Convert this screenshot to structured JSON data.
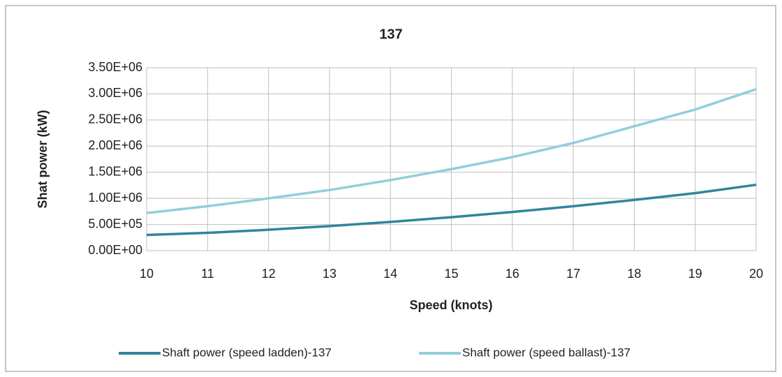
{
  "chart_data": {
    "type": "line",
    "title": "137",
    "xlabel": "Speed (knots)",
    "ylabel": "Shat power (kW)",
    "x": [
      10,
      11,
      12,
      13,
      14,
      15,
      16,
      17,
      18,
      19,
      20
    ],
    "series": [
      {
        "name": "Shaft power (speed ladden)-137",
        "color": "#31859c",
        "values": [
          300000,
          340000,
          400000,
          470000,
          550000,
          640000,
          740000,
          850000,
          970000,
          1100000,
          1260000
        ]
      },
      {
        "name": "Shaft power (speed ballast)-137",
        "color": "#93cddd",
        "values": [
          720000,
          850000,
          1000000,
          1160000,
          1350000,
          1560000,
          1790000,
          2060000,
          2380000,
          2700000,
          3090000
        ]
      }
    ],
    "xlim": [
      10,
      20
    ],
    "xticks": [
      10,
      11,
      12,
      13,
      14,
      15,
      16,
      17,
      18,
      19,
      20
    ],
    "ylim": [
      0,
      3500000
    ],
    "yticks": [
      {
        "value": 0,
        "label": "0.00E+00"
      },
      {
        "value": 500000,
        "label": "5.00E+05"
      },
      {
        "value": 1000000,
        "label": "1.00E+06"
      },
      {
        "value": 1500000,
        "label": "1.50E+06"
      },
      {
        "value": 2000000,
        "label": "2.00E+06"
      },
      {
        "value": 2500000,
        "label": "2.50E+06"
      },
      {
        "value": 3000000,
        "label": "3.00E+06"
      },
      {
        "value": 3500000,
        "label": "3.50E+06"
      }
    ],
    "grid": true,
    "legend": "bottom"
  }
}
